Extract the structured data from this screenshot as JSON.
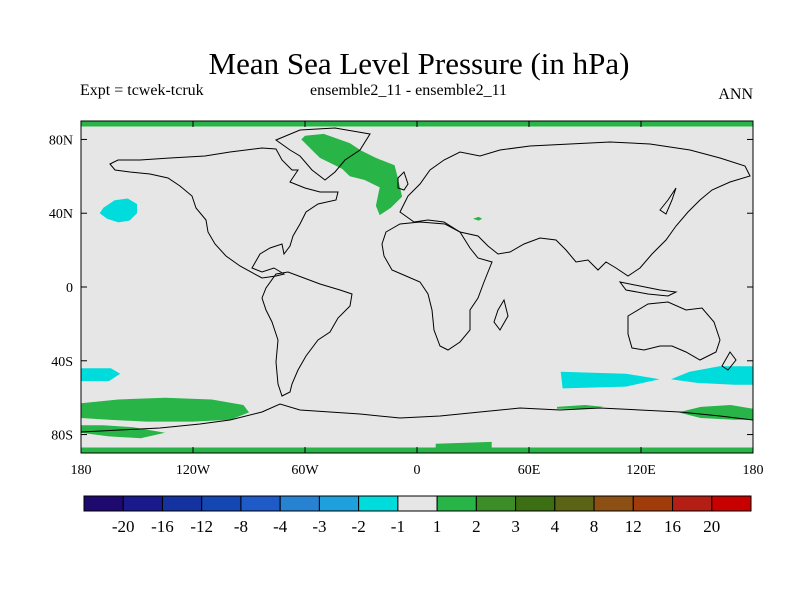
{
  "title": "Mean Sea Level Pressure (in hPa)",
  "expt_label": "Expt = tcwek-tcruk",
  "ensemble_label": "ensemble2_11 - ensemble2_11",
  "season": "ANN",
  "chart_data": {
    "type": "heatmap",
    "title": "Mean Sea Level Pressure (in hPa)",
    "projection": "cylindrical equidistant",
    "xlim": [
      -180,
      180
    ],
    "ylim": [
      -90,
      90
    ],
    "x_ticks": [
      {
        "value": -180,
        "label": "180"
      },
      {
        "value": -120,
        "label": "120W"
      },
      {
        "value": -60,
        "label": "60W"
      },
      {
        "value": 0,
        "label": "0"
      },
      {
        "value": 60,
        "label": "60E"
      },
      {
        "value": 120,
        "label": "120E"
      },
      {
        "value": 180,
        "label": "180"
      }
    ],
    "y_ticks": [
      {
        "value": 80,
        "label": "80N"
      },
      {
        "value": 40,
        "label": "40N"
      },
      {
        "value": 0,
        "label": "0"
      },
      {
        "value": -40,
        "label": "40S"
      },
      {
        "value": -80,
        "label": "80S"
      }
    ],
    "colorbar": {
      "colors": [
        "#1e0a6e",
        "#1a1a8c",
        "#1432a0",
        "#1446b4",
        "#1e5ac8",
        "#2882d2",
        "#1ea0dc",
        "#00dcdc",
        "#e6e6e6",
        "#28b446",
        "#3c8c28",
        "#3c6e14",
        "#5a6414",
        "#8c5014",
        "#a03c0a",
        "#b41e14",
        "#c80000"
      ],
      "labels": [
        "-20",
        "-16",
        "-12",
        "-8",
        "-4",
        "-3",
        "-2",
        "-1",
        "1",
        "2",
        "3",
        "4",
        "8",
        "12",
        "16",
        "20"
      ],
      "background": "#e6e6e6"
    },
    "regions": [
      {
        "name": "north-pole-band",
        "class": "2",
        "color": "#28b446",
        "points": [
          [
            -180,
            90
          ],
          [
            180,
            90
          ],
          [
            180,
            87
          ],
          [
            -180,
            87
          ]
        ]
      },
      {
        "name": "greenland-iceland-positive",
        "class": "2",
        "color": "#28b446",
        "points": [
          [
            -60,
            82
          ],
          [
            -50,
            83
          ],
          [
            -36,
            78
          ],
          [
            -30,
            74
          ],
          [
            -22,
            70
          ],
          [
            -12,
            66
          ],
          [
            -10,
            58
          ],
          [
            -8,
            49
          ],
          [
            -14,
            43
          ],
          [
            -20,
            39
          ],
          [
            -22,
            44
          ],
          [
            -20,
            54
          ],
          [
            -28,
            58
          ],
          [
            -36,
            60
          ],
          [
            -40,
            64
          ],
          [
            -44,
            66
          ],
          [
            -52,
            70
          ],
          [
            -58,
            76
          ],
          [
            -62,
            80
          ]
        ]
      },
      {
        "name": "north-pacific-negative",
        "class": "-1",
        "color": "#00dcdc",
        "points": [
          [
            -168,
            43
          ],
          [
            -162,
            47
          ],
          [
            -155,
            48
          ],
          [
            -150,
            45
          ],
          [
            -150,
            40
          ],
          [
            -154,
            36
          ],
          [
            -160,
            35
          ],
          [
            -166,
            37
          ],
          [
            -170,
            40
          ]
        ]
      },
      {
        "name": "central-asia-speck",
        "class": "2",
        "color": "#28b446",
        "points": [
          [
            30,
            37
          ],
          [
            33,
            38
          ],
          [
            35,
            37
          ],
          [
            33,
            36
          ]
        ]
      },
      {
        "name": "south-pacific-negative-west",
        "class": "-1",
        "color": "#00dcdc",
        "points": [
          [
            -180,
            -44
          ],
          [
            -164,
            -44
          ],
          [
            -159,
            -47
          ],
          [
            -165,
            -51
          ],
          [
            -180,
            -51
          ]
        ]
      },
      {
        "name": "south-indian-negative",
        "class": "-1",
        "color": "#00dcdc",
        "points": [
          [
            77,
            -46
          ],
          [
            112,
            -47
          ],
          [
            130,
            -50
          ],
          [
            112,
            -54
          ],
          [
            78,
            -55
          ]
        ]
      },
      {
        "name": "south-pacific-negative-east",
        "class": "-1",
        "color": "#00dcdc",
        "points": [
          [
            180,
            -43
          ],
          [
            162,
            -43
          ],
          [
            146,
            -46
          ],
          [
            136,
            -50
          ],
          [
            150,
            -52
          ],
          [
            170,
            -53
          ],
          [
            180,
            -53
          ]
        ]
      },
      {
        "name": "south-pacific-positive",
        "class": "2",
        "color": "#28b446",
        "points": [
          [
            -180,
            -63
          ],
          [
            -160,
            -61
          ],
          [
            -135,
            -60
          ],
          [
            -110,
            -61
          ],
          [
            -93,
            -64
          ],
          [
            -90,
            -68
          ],
          [
            -100,
            -72
          ],
          [
            -120,
            -73
          ],
          [
            -145,
            -73
          ],
          [
            -165,
            -72
          ],
          [
            -180,
            -71
          ]
        ]
      },
      {
        "name": "ross-sea-positive",
        "class": "2",
        "color": "#28b446",
        "points": [
          [
            -180,
            -75
          ],
          [
            -168,
            -75
          ],
          [
            -152,
            -76
          ],
          [
            -135,
            -79
          ],
          [
            -148,
            -82
          ],
          [
            -165,
            -81
          ],
          [
            -180,
            -79
          ]
        ]
      },
      {
        "name": "southern-indian-strip",
        "class": "2",
        "color": "#28b446",
        "points": [
          [
            75,
            -65
          ],
          [
            90,
            -64
          ],
          [
            100,
            -65
          ],
          [
            90,
            -66
          ],
          [
            75,
            -66
          ]
        ]
      },
      {
        "name": "southeast-pacific-positive",
        "class": "2",
        "color": "#28b446",
        "points": [
          [
            180,
            -66
          ],
          [
            168,
            -64
          ],
          [
            152,
            -65
          ],
          [
            140,
            -68
          ],
          [
            152,
            -71
          ],
          [
            170,
            -72
          ],
          [
            180,
            -72
          ]
        ]
      },
      {
        "name": "south-pole-band",
        "class": "2",
        "color": "#28b446",
        "points": [
          [
            -180,
            -90
          ],
          [
            180,
            -90
          ],
          [
            180,
            -87
          ],
          [
            -180,
            -87
          ]
        ]
      },
      {
        "name": "antarctic-coast-positive",
        "class": "2",
        "color": "#28b446",
        "points": [
          [
            10,
            -85
          ],
          [
            40,
            -84
          ],
          [
            40,
            -87
          ],
          [
            10,
            -87
          ]
        ]
      }
    ]
  }
}
